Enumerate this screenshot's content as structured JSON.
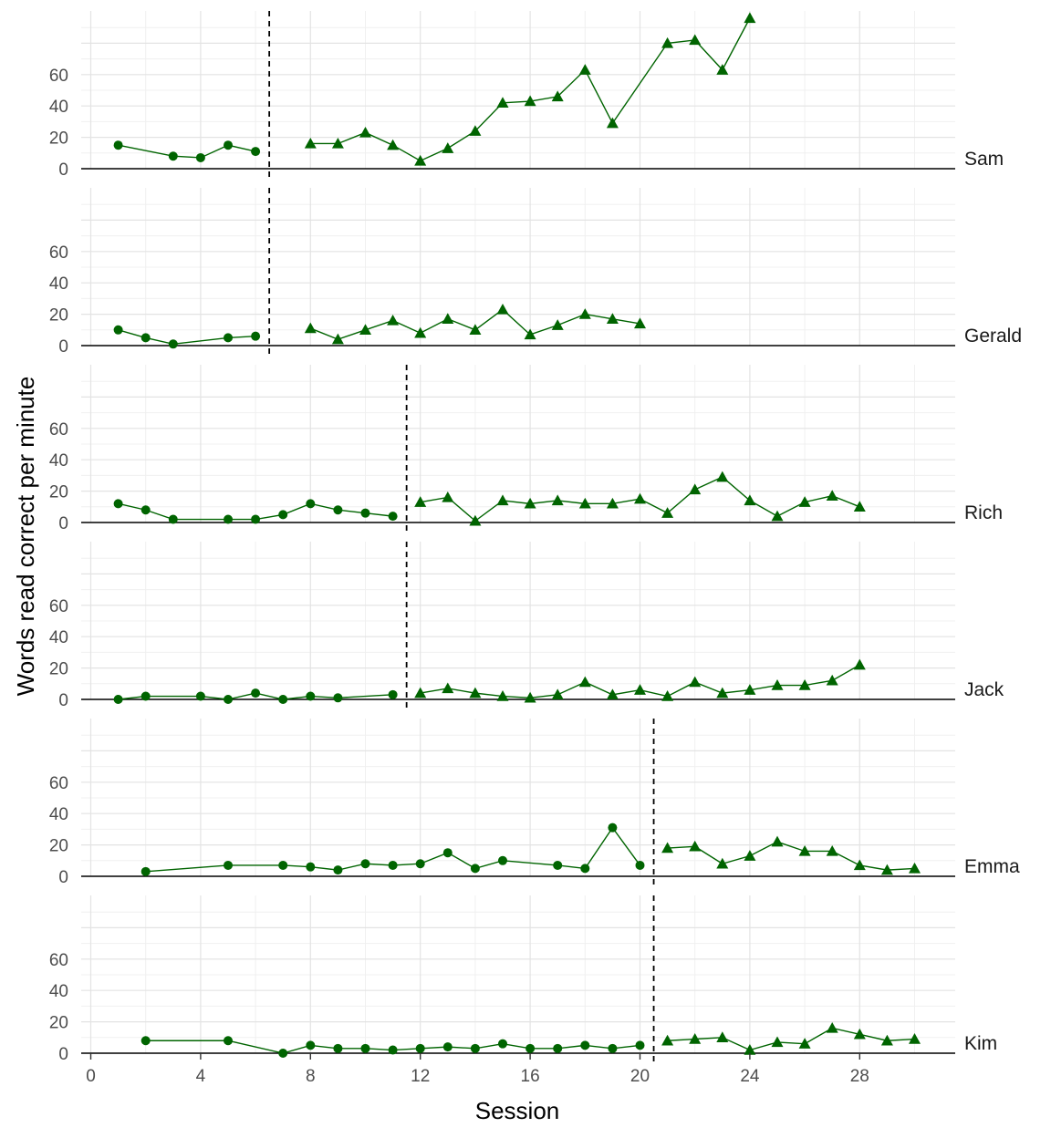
{
  "chart_data": {
    "type": "line",
    "xlabel": "Session",
    "ylabel": "Words read correct per minute",
    "xlim": [
      0,
      31
    ],
    "ylim": [
      0,
      90
    ],
    "x_ticks": [
      0,
      4,
      8,
      12,
      16,
      20,
      24,
      28
    ],
    "y_ticks": [
      0,
      20,
      40,
      60
    ],
    "grid": true,
    "line_color": "#006400",
    "phase_line_color": "#000000",
    "marker_baseline": "circle",
    "marker_intervention": "triangle",
    "panels": [
      {
        "name": "Sam",
        "phase_change": 6.5,
        "baseline": {
          "x": [
            1,
            3,
            4,
            5,
            6
          ],
          "y": [
            15,
            8,
            7,
            15,
            11
          ]
        },
        "intervention": {
          "x": [
            8,
            9,
            10,
            11,
            12,
            13,
            14,
            15,
            16,
            17,
            18,
            19,
            21,
            22,
            23,
            24
          ],
          "y": [
            16,
            16,
            23,
            15,
            5,
            13,
            24,
            42,
            43,
            46,
            63,
            29,
            80,
            82,
            63,
            96
          ]
        }
      },
      {
        "name": "Gerald",
        "phase_change": 6.5,
        "baseline": {
          "x": [
            1,
            2,
            3,
            5,
            6
          ],
          "y": [
            10,
            5,
            1,
            5,
            6
          ]
        },
        "intervention": {
          "x": [
            8,
            9,
            10,
            11,
            12,
            13,
            14,
            15,
            16,
            17,
            18,
            19,
            20
          ],
          "y": [
            11,
            4,
            10,
            16,
            8,
            17,
            10,
            23,
            7,
            13,
            20,
            17,
            14
          ]
        }
      },
      {
        "name": "Rich",
        "phase_change": 11.5,
        "baseline": {
          "x": [
            1,
            2,
            3,
            5,
            6,
            7,
            8,
            9,
            10,
            11
          ],
          "y": [
            12,
            8,
            2,
            2,
            2,
            5,
            12,
            8,
            6,
            4
          ]
        },
        "intervention": {
          "x": [
            12,
            13,
            14,
            15,
            16,
            17,
            18,
            19,
            20,
            21,
            22,
            23,
            24,
            25,
            26,
            27,
            28
          ],
          "y": [
            13,
            16,
            1,
            14,
            12,
            14,
            12,
            12,
            15,
            6,
            21,
            29,
            14,
            4,
            13,
            17,
            10
          ]
        }
      },
      {
        "name": "Jack",
        "phase_change": 11.5,
        "baseline": {
          "x": [
            1,
            2,
            4,
            5,
            6,
            7,
            8,
            9,
            11
          ],
          "y": [
            0,
            2,
            2,
            0,
            4,
            0,
            2,
            1,
            3
          ]
        },
        "intervention": {
          "x": [
            12,
            13,
            14,
            15,
            16,
            17,
            18,
            19,
            20,
            21,
            22,
            23,
            24,
            25,
            26,
            27,
            28
          ],
          "y": [
            4,
            7,
            4,
            2,
            1,
            3,
            11,
            3,
            6,
            2,
            11,
            4,
            6,
            9,
            9,
            12,
            22
          ]
        }
      },
      {
        "name": "Emma",
        "phase_change": 20.5,
        "baseline": {
          "x": [
            2,
            5,
            7,
            8,
            9,
            10,
            11,
            12,
            13,
            14,
            15,
            17,
            18,
            19,
            20
          ],
          "y": [
            3,
            7,
            7,
            6,
            4,
            8,
            7,
            8,
            15,
            5,
            10,
            7,
            5,
            31,
            7
          ]
        },
        "intervention": {
          "x": [
            21,
            22,
            23,
            24,
            25,
            26,
            27,
            28,
            29,
            30
          ],
          "y": [
            18,
            19,
            8,
            13,
            22,
            16,
            16,
            7,
            4,
            5
          ]
        }
      },
      {
        "name": "Kim",
        "phase_change": 20.5,
        "baseline": {
          "x": [
            2,
            5,
            7,
            8,
            9,
            10,
            11,
            12,
            13,
            14,
            15,
            16,
            17,
            18,
            19,
            20
          ],
          "y": [
            8,
            8,
            0,
            5,
            3,
            3,
            2,
            3,
            4,
            3,
            6,
            3,
            3,
            5,
            3,
            5
          ]
        },
        "intervention": {
          "x": [
            21,
            22,
            23,
            24,
            25,
            26,
            27,
            28,
            29,
            30
          ],
          "y": [
            8,
            9,
            10,
            2,
            7,
            6,
            16,
            12,
            8,
            9
          ]
        }
      }
    ]
  }
}
